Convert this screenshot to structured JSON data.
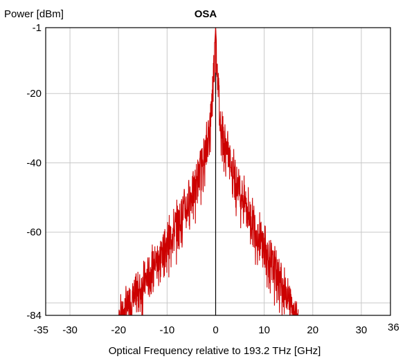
{
  "chart_data": {
    "type": "line",
    "title": "OSA",
    "ylabel": "Power [dBm]",
    "xlabel": "Optical Frequency relative to 193.2 THz [GHz]",
    "xlim": [
      -35,
      36
    ],
    "ylim": [
      -84,
      -1
    ],
    "x_ticks": [
      -35,
      -30,
      -20,
      -10,
      0,
      10,
      20,
      30,
      36
    ],
    "y_ticks": [
      -1,
      -20,
      -40,
      -60,
      -84
    ],
    "grid": true,
    "legend": "none",
    "series_color": "#cc0000",
    "peak": {
      "x": 0,
      "y": -1
    },
    "series": [
      {
        "x": [
          -20,
          -18,
          -16,
          -14,
          -12,
          -10,
          -8,
          -6,
          -4,
          -2,
          -1,
          0,
          1,
          2,
          4,
          6,
          8,
          10,
          12,
          14,
          16,
          17
        ],
        "y": [
          -84,
          -79,
          -75,
          -71,
          -66,
          -61,
          -56,
          -50,
          -44,
          -34,
          -25,
          -1,
          -27,
          -33,
          -42,
          -49,
          -56,
          -62,
          -68,
          -74,
          -80,
          -84
        ]
      }
    ]
  }
}
